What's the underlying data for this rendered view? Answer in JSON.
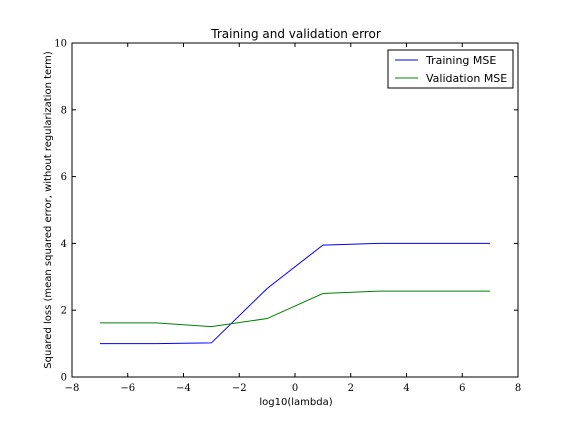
{
  "chart_data": {
    "type": "line",
    "title": "Training and validation error",
    "xlabel": "log10(lambda)",
    "ylabel": "Squared loss (mean squared error, without regularization term)",
    "xlim": [
      -8,
      8
    ],
    "ylim": [
      0,
      10
    ],
    "xticks": [
      -8,
      -6,
      -4,
      -2,
      0,
      2,
      4,
      6,
      8
    ],
    "xtick_labels": [
      "−8",
      "−6",
      "−4",
      "−2",
      "0",
      "2",
      "4",
      "6",
      "8"
    ],
    "yticks": [
      0,
      2,
      4,
      6,
      8,
      10
    ],
    "ytick_labels": [
      "0",
      "2",
      "4",
      "6",
      "8",
      "10"
    ],
    "grid": false,
    "legend": "top-right",
    "x": [
      -7,
      -5,
      -3,
      -1,
      1,
      3,
      5,
      7
    ],
    "series": [
      {
        "name": "Training MSE",
        "color": "#0000ff",
        "values": [
          1.0,
          1.0,
          1.02,
          2.65,
          3.95,
          4.0,
          4.0,
          4.0
        ]
      },
      {
        "name": "Validation MSE",
        "color": "#008000",
        "values": [
          1.62,
          1.62,
          1.51,
          1.75,
          2.5,
          2.57,
          2.57,
          2.57
        ]
      }
    ]
  }
}
